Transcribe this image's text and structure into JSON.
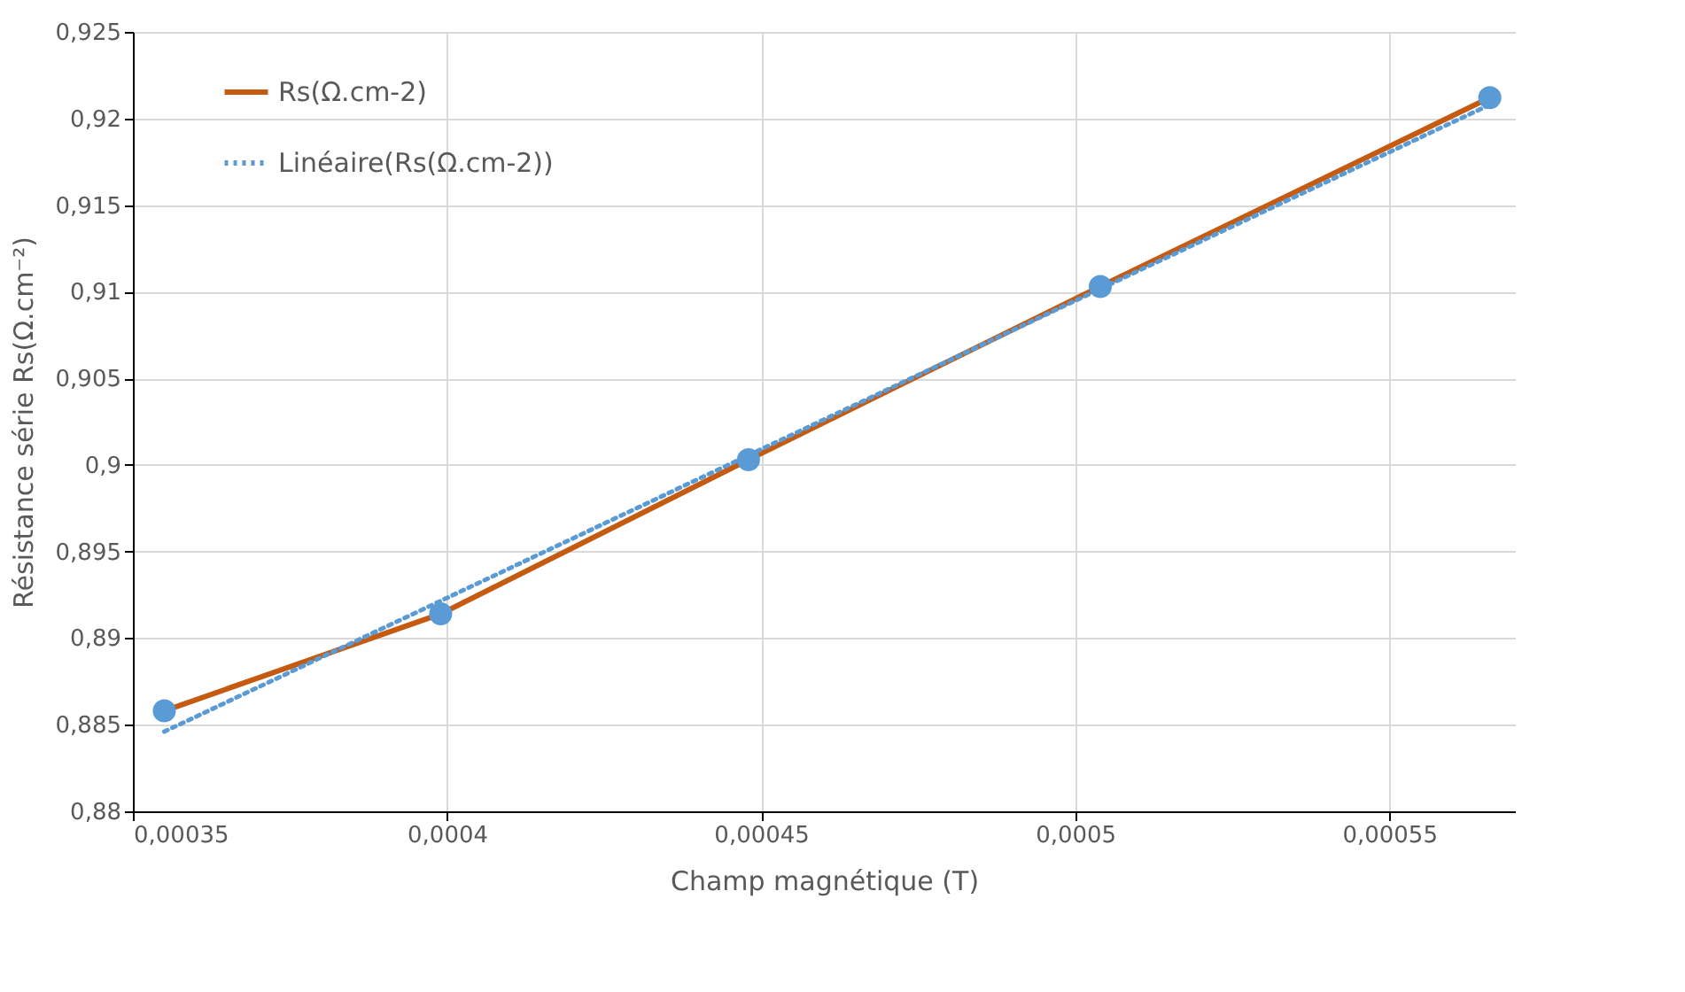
{
  "chart_data": {
    "type": "line",
    "xlabel": "Champ magnétique (T)",
    "ylabel": "Résistance série Rs(Ω.cm⁻²)",
    "series": [
      {
        "name": "Rs(Ω.cm-2)",
        "color": "#c55a11",
        "colors": [
          "#5b9bd5",
          "#5b9bd5",
          "#5b9bd5",
          "#5b9bd5",
          "#5b9bd5"
        ],
        "marker": "circle",
        "line_style": "solid",
        "x": [
          0.000355,
          0.000399,
          0.000448,
          0.000504,
          0.000566
        ],
        "values": [
          0.8858,
          0.8914,
          0.9003,
          0.9103,
          0.9212
        ]
      },
      {
        "name": "Linéaire(Rs(Ω.cm-2))",
        "color": "#5b9bd5",
        "line_style": "dotted",
        "x": [
          0.000355,
          0.000566
        ],
        "values": [
          0.8846,
          0.9208
        ]
      }
    ],
    "xlim": [
      0.00035,
      0.00057
    ],
    "ylim": [
      0.88,
      0.925
    ],
    "xticks": [
      {
        "value": 0.00035,
        "label": "0,00035"
      },
      {
        "value": 0.0004,
        "label": "0,0004"
      },
      {
        "value": 0.00045,
        "label": "0,00045"
      },
      {
        "value": 0.0005,
        "label": "0,0005"
      },
      {
        "value": 0.00055,
        "label": "0,00055"
      }
    ],
    "yticks": [
      {
        "value": 0.88,
        "label": "0,88"
      },
      {
        "value": 0.885,
        "label": "0,885"
      },
      {
        "value": 0.89,
        "label": "0,89"
      },
      {
        "value": 0.895,
        "label": "0,895"
      },
      {
        "value": 0.9,
        "label": "0,9"
      },
      {
        "value": 0.905,
        "label": "0,905"
      },
      {
        "value": 0.91,
        "label": "0,91"
      },
      {
        "value": 0.915,
        "label": "0,915"
      },
      {
        "value": 0.92,
        "label": "0,92"
      },
      {
        "value": 0.925,
        "label": "0,925"
      }
    ],
    "grid": true,
    "legend": "top left"
  }
}
